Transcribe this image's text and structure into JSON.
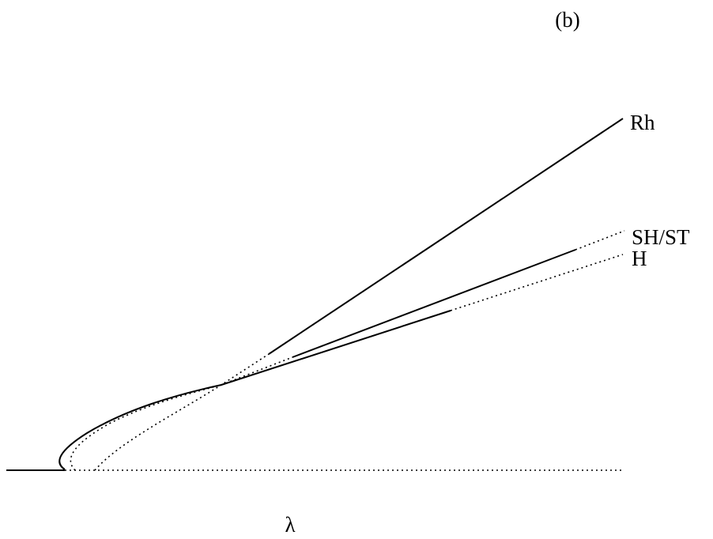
{
  "panel_label": "(b)",
  "x_label": "λ",
  "curves": [
    {
      "label": "Rh"
    },
    {
      "label": "SH/ST"
    },
    {
      "label": "H"
    }
  ]
}
